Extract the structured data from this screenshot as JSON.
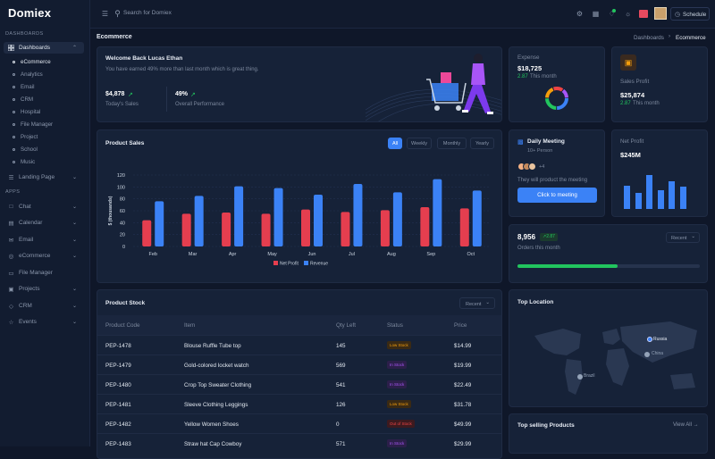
{
  "app": {
    "logo": "Domiex"
  },
  "sidebar": {
    "section_dashboards": "DASHBOARDS",
    "dashboards_label": "Dashboards",
    "dash_items": [
      "eCommerce",
      "Analytics",
      "Email",
      "CRM",
      "Hospital",
      "File Manager",
      "Project",
      "School",
      "Music"
    ],
    "landing_label": "Landing Page",
    "section_apps": "APPS",
    "apps": [
      "Chat",
      "Calendar",
      "Email",
      "eCommerce",
      "File Manager",
      "Projects",
      "CRM",
      "Events"
    ]
  },
  "topbar": {
    "search_placeholder": "Search for Domiex",
    "schedule_label": "Schedule"
  },
  "breadcrumb": {
    "page": "Ecommerce",
    "parent": "Dashboards",
    "current": "Ecommerce"
  },
  "welcome": {
    "title": "Welcome Back Lucas Ethan",
    "subtitle": "You have earned 49% more than last month which is great thing.",
    "sales_value": "$4,878",
    "sales_label": "Today's Sales",
    "perf_value": "49%",
    "perf_label": "Overall Performance"
  },
  "expense": {
    "label": "Expense",
    "value": "$18,725",
    "change": "2.87",
    "period": "This month"
  },
  "sales_profit": {
    "label": "Sales Profit",
    "value": "$25,874",
    "change": "2.87",
    "period": "This month"
  },
  "meeting": {
    "title": "Daily Meeting",
    "persons": "10+ Person",
    "extra": "+4",
    "text": "They will product the meeting",
    "button": "Click to meeting"
  },
  "net_profit": {
    "label": "Net Profit",
    "value": "$245M"
  },
  "orders": {
    "value": "8,956",
    "badge": "2.87",
    "label": "Orders this month",
    "dropdown": "Recent",
    "progress": 0.55
  },
  "product_sales": {
    "title": "Product Sales",
    "tabs": [
      "All",
      "Weekly",
      "Monthly",
      "Yearly"
    ]
  },
  "chart_data": {
    "type": "bar",
    "categories": [
      "Feb",
      "Mar",
      "Apr",
      "May",
      "Jun",
      "Jul",
      "Aug",
      "Sep",
      "Oct"
    ],
    "series": [
      {
        "name": "Net Profit",
        "color": "#e53e4f",
        "values": [
          44,
          55,
          57,
          55,
          62,
          58,
          61,
          66,
          64
        ]
      },
      {
        "name": "Revenue",
        "color": "#3b82f6",
        "values": [
          76,
          85,
          101,
          98,
          87,
          105,
          91,
          113,
          94
        ]
      }
    ],
    "ylabel": "$ (thousands)",
    "yticks": [
      0,
      20,
      40,
      60,
      80,
      100,
      120
    ],
    "ylim": [
      0,
      120
    ],
    "legend": "bottom"
  },
  "stock": {
    "title": "Product Stock",
    "dropdown": "Recent",
    "headers": [
      "Product Code",
      "Item",
      "Qty Left",
      "Status",
      "Price"
    ],
    "rows": [
      [
        "PEP-1478",
        "Blouse Ruffle Tube top",
        "145",
        "Low Stock",
        "$14.99"
      ],
      [
        "PEP-1479",
        "Gold-colored locket watch",
        "569",
        "In Stock",
        "$19.99"
      ],
      [
        "PEP-1480",
        "Crop Top Sweater Clothing",
        "541",
        "In Stock",
        "$22.49"
      ],
      [
        "PEP-1481",
        "Sleeve Clothing Leggings",
        "126",
        "Low Stock",
        "$31.78"
      ],
      [
        "PEP-1482",
        "Yellow Women Shoes",
        "0",
        "Out of Stock",
        "$49.99"
      ],
      [
        "PEP-1483",
        "Straw hat Cap Cowboy",
        "571",
        "In Stock",
        "$29.99"
      ]
    ]
  },
  "location": {
    "title": "Top Location",
    "markers": [
      "Russia",
      "China",
      "Brazil"
    ]
  },
  "top_selling": {
    "title": "Top selling Products",
    "link": "View All"
  },
  "colors": {
    "accent": "#3b82f6",
    "success": "#22c55e",
    "danger": "#ef4444",
    "warning": "#f59e0b",
    "purple": "#a855f7"
  }
}
